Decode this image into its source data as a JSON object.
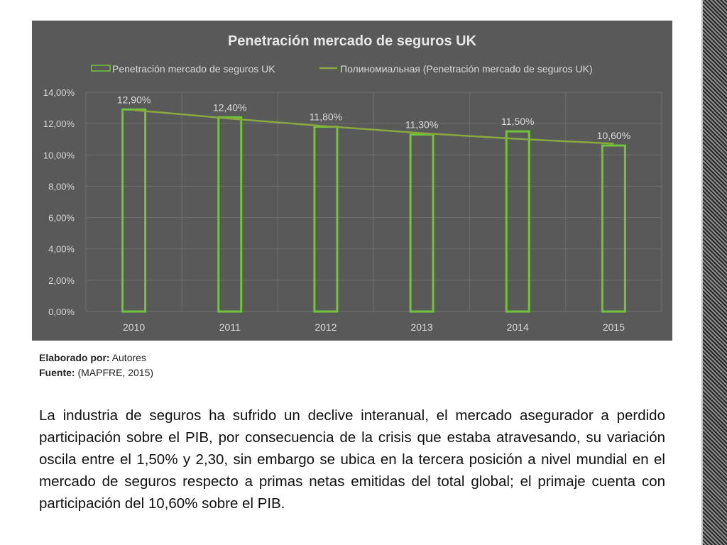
{
  "chart_data": {
    "type": "bar",
    "title": "Penetración mercado de seguros UK",
    "categories": [
      "2010",
      "2011",
      "2012",
      "2013",
      "2014",
      "2015"
    ],
    "series": [
      {
        "name": "Penetración mercado de seguros UK",
        "values": [
          12.9,
          12.4,
          11.8,
          11.3,
          11.5,
          10.6
        ]
      }
    ],
    "data_labels": [
      "12,90%",
      "12,40%",
      "11,80%",
      "11,30%",
      "11,50%",
      "10,60%"
    ],
    "trendline": {
      "name": "Полиномиальная (Penetración mercado de seguros UK)",
      "type": "polynomial",
      "values": [
        12.86,
        12.32,
        11.83,
        11.39,
        11.02,
        10.72
      ]
    },
    "ylim": [
      0,
      14
    ],
    "yticks": [
      0,
      2,
      4,
      6,
      8,
      10,
      12,
      14
    ],
    "ytick_labels": [
      "0,00%",
      "2,00%",
      "4,00%",
      "6,00%",
      "8,00%",
      "10,00%",
      "12,00%",
      "14,00%"
    ],
    "xlabel": "",
    "ylabel": "",
    "grid": true,
    "legend_position": "top",
    "colors": {
      "background": "#595959",
      "bar_outline": "#70c43a",
      "trend": "#8aa83e",
      "text": "#d9d9d9",
      "grid": "#6e6e6e"
    }
  },
  "caption": {
    "elaborado_label": "Elaborado por:",
    "elaborado_value": " Autores",
    "fuente_label": "Fuente:",
    "fuente_value": " (MAPFRE, 2015)"
  },
  "body_text": "La industria de seguros ha sufrido un declive interanual, el mercado asegurador a perdido participación sobre el PIB, por consecuencia de la crisis que estaba atravesando, su variación oscila entre el 1,50% y 2,30, sin embargo se ubica en la tercera posición a nivel mundial en el mercado de seguros respecto a primas netas emitidas del total global; el primaje cuenta con participación del 10,60% sobre el PIB."
}
